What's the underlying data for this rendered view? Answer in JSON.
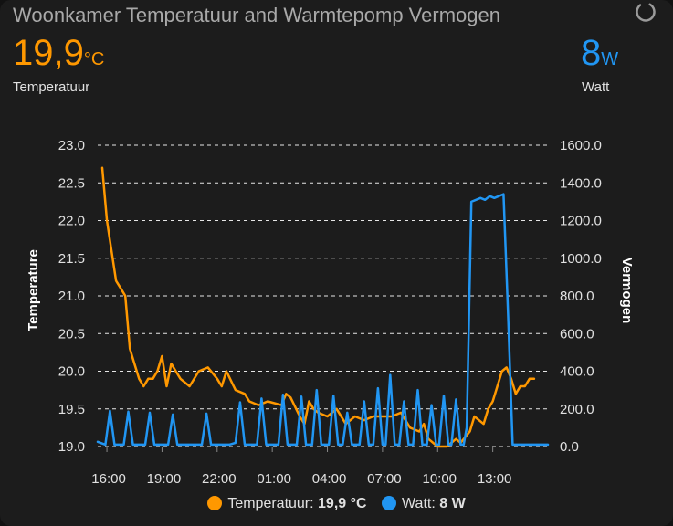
{
  "card": {
    "title": "Woonkamer Temperatuur and Warmtepomp Vermogen",
    "loading_icon": "spinner-icon"
  },
  "temperature": {
    "value": "19,9",
    "unit": "°C",
    "label": "Temperatuur",
    "color": "#ff9800"
  },
  "power": {
    "value": "8",
    "unit": "W",
    "label": "Watt",
    "color": "#2196f3"
  },
  "legend": {
    "temp_name": "Temperatuur:",
    "temp_value": "19,9 °C",
    "power_name": "Watt:",
    "power_value": "8 W"
  },
  "chart_data": {
    "type": "line",
    "x_labels": [
      "16:00",
      "19:00",
      "22:00",
      "01:00",
      "04:00",
      "07:00",
      "10:00",
      "13:00"
    ],
    "x_range": [
      "15:30",
      "16:00 (+1 day)"
    ],
    "grid": true,
    "legend_position": "bottom",
    "y_left": {
      "label": "Temperature",
      "range": [
        19.0,
        23.0
      ],
      "ticks": [
        "19.0",
        "19.5",
        "20.0",
        "20.5",
        "21.0",
        "21.5",
        "22.0",
        "22.5",
        "23.0"
      ]
    },
    "y_right": {
      "label": "Vermogen",
      "range": [
        0,
        1600
      ],
      "ticks": [
        "0.0",
        "200.0",
        "400.0",
        "600.0",
        "800.0",
        "1000.0",
        "1200.0",
        "1400.0",
        "1600.0"
      ]
    },
    "series": [
      {
        "name": "Temperatuur",
        "axis": "left",
        "color": "#ff9800",
        "points": [
          [
            "15:45",
            22.7
          ],
          [
            "16:00",
            22.0
          ],
          [
            "16:15",
            21.6
          ],
          [
            "16:30",
            21.2
          ],
          [
            "16:45",
            21.1
          ],
          [
            "17:00",
            21.0
          ],
          [
            "17:15",
            20.3
          ],
          [
            "17:30",
            20.1
          ],
          [
            "17:45",
            19.9
          ],
          [
            "18:00",
            19.8
          ],
          [
            "18:15",
            19.9
          ],
          [
            "18:30",
            19.9
          ],
          [
            "18:45",
            20.0
          ],
          [
            "19:00",
            20.2
          ],
          [
            "19:15",
            19.8
          ],
          [
            "19:30",
            20.1
          ],
          [
            "19:45",
            20.0
          ],
          [
            "20:00",
            19.9
          ],
          [
            "20:30",
            19.8
          ],
          [
            "21:00",
            20.0
          ],
          [
            "21:30",
            20.05
          ],
          [
            "22:00",
            19.9
          ],
          [
            "22:15",
            19.8
          ],
          [
            "22:30",
            20.0
          ],
          [
            "23:00",
            19.75
          ],
          [
            "23:30",
            19.7
          ],
          [
            "23:45",
            19.6
          ],
          [
            "00:15",
            19.55
          ],
          [
            "00:45",
            19.6
          ],
          [
            "01:30",
            19.55
          ],
          [
            "01:45",
            19.7
          ],
          [
            "02:00",
            19.65
          ],
          [
            "02:30",
            19.4
          ],
          [
            "02:45",
            19.3
          ],
          [
            "03:00",
            19.6
          ],
          [
            "03:15",
            19.5
          ],
          [
            "03:30",
            19.45
          ],
          [
            "04:00",
            19.4
          ],
          [
            "04:30",
            19.5
          ],
          [
            "05:00",
            19.3
          ],
          [
            "05:30",
            19.4
          ],
          [
            "06:00",
            19.35
          ],
          [
            "06:30",
            19.4
          ],
          [
            "07:00",
            19.4
          ],
          [
            "07:30",
            19.4
          ],
          [
            "08:00",
            19.45
          ],
          [
            "08:30",
            19.25
          ],
          [
            "09:00",
            19.2
          ],
          [
            "09:15",
            19.3
          ],
          [
            "09:30",
            19.1
          ],
          [
            "10:00",
            19.0
          ],
          [
            "10:30",
            19.0
          ],
          [
            "11:00",
            19.1
          ],
          [
            "11:15",
            19.05
          ],
          [
            "11:45",
            19.2
          ],
          [
            "12:00",
            19.4
          ],
          [
            "12:30",
            19.3
          ],
          [
            "12:45",
            19.5
          ],
          [
            "13:00",
            19.6
          ],
          [
            "13:30",
            20.0
          ],
          [
            "13:45",
            20.05
          ],
          [
            "14:00",
            19.9
          ],
          [
            "14:15",
            19.7
          ],
          [
            "14:30",
            19.8
          ],
          [
            "14:45",
            19.8
          ],
          [
            "15:00",
            19.9
          ],
          [
            "15:15",
            19.9
          ]
        ]
      },
      {
        "name": "Watt",
        "axis": "right",
        "color": "#2196f3",
        "points": [
          [
            "15:30",
            25
          ],
          [
            "15:55",
            10
          ],
          [
            "16:10",
            190
          ],
          [
            "16:25",
            10
          ],
          [
            "16:55",
            10
          ],
          [
            "17:10",
            185
          ],
          [
            "17:25",
            10
          ],
          [
            "18:05",
            10
          ],
          [
            "18:20",
            180
          ],
          [
            "18:35",
            10
          ],
          [
            "19:20",
            10
          ],
          [
            "19:35",
            170
          ],
          [
            "19:50",
            10
          ],
          [
            "21:10",
            10
          ],
          [
            "21:25",
            175
          ],
          [
            "21:40",
            10
          ],
          [
            "22:40",
            10
          ],
          [
            "23:00",
            20
          ],
          [
            "23:15",
            235
          ],
          [
            "23:30",
            10
          ],
          [
            "24:10",
            10
          ],
          [
            "24:25",
            255
          ],
          [
            "24:40",
            10
          ],
          [
            "25:20",
            10
          ],
          [
            "25:35",
            275
          ],
          [
            "25:50",
            10
          ],
          [
            "26:20",
            10
          ],
          [
            "26:35",
            265
          ],
          [
            "26:50",
            10
          ],
          [
            "27:10",
            10
          ],
          [
            "27:25",
            300
          ],
          [
            "27:40",
            10
          ],
          [
            "28:05",
            10
          ],
          [
            "28:20",
            270
          ],
          [
            "28:35",
            10
          ],
          [
            "28:50",
            10
          ],
          [
            "29:05",
            180
          ],
          [
            "29:20",
            10
          ],
          [
            "29:45",
            10
          ],
          [
            "30:00",
            240
          ],
          [
            "30:15",
            10
          ],
          [
            "30:30",
            10
          ],
          [
            "30:45",
            310
          ],
          [
            "31:00",
            10
          ],
          [
            "31:10",
            10
          ],
          [
            "31:25",
            380
          ],
          [
            "31:40",
            10
          ],
          [
            "31:55",
            10
          ],
          [
            "32:10",
            240
          ],
          [
            "32:25",
            10
          ],
          [
            "32:40",
            10
          ],
          [
            "32:55",
            300
          ],
          [
            "33:10",
            10
          ],
          [
            "33:25",
            10
          ],
          [
            "33:40",
            220
          ],
          [
            "33:55",
            10
          ],
          [
            "34:05",
            10
          ],
          [
            "34:20",
            270
          ],
          [
            "34:35",
            10
          ],
          [
            "34:45",
            10
          ],
          [
            "35:00",
            250
          ],
          [
            "35:15",
            10
          ],
          [
            "35:25",
            10
          ],
          [
            "35:35",
            100
          ],
          [
            "35:50",
            1300
          ],
          [
            "36:20",
            1320
          ],
          [
            "36:35",
            1310
          ],
          [
            "36:50",
            1330
          ],
          [
            "37:05",
            1320
          ],
          [
            "37:35",
            1340
          ],
          [
            "37:50",
            700
          ],
          [
            "38:05",
            10
          ],
          [
            "38:30",
            10
          ],
          [
            "39:20",
            10
          ],
          [
            "40:00",
            10
          ]
        ]
      }
    ]
  }
}
